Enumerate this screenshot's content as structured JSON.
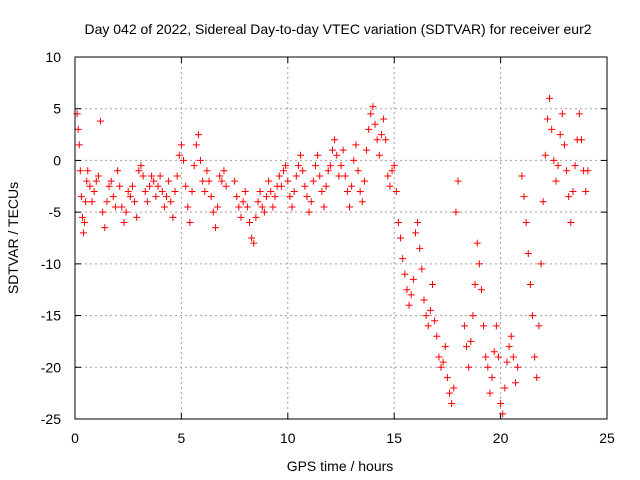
{
  "colors": {
    "series": "#ff0000",
    "grid": "#a0a0a0",
    "axis": "#000000"
  },
  "chart_data": {
    "type": "scatter",
    "marker": "plus",
    "title": "Day 042 of 2022, Sidereal Day-to-day VTEC variation (SDTVAR) for receiver eur2",
    "xlabel": "GPS time / hours",
    "ylabel": "SDTVAR / TECUs",
    "xlim": [
      0,
      25
    ],
    "ylim": [
      -25,
      10
    ],
    "xticks": [
      0,
      5,
      10,
      15,
      20,
      25
    ],
    "yticks": [
      -25,
      -20,
      -15,
      -10,
      -5,
      0,
      5,
      10
    ],
    "grid": true,
    "series": [
      {
        "name": "SDTVAR",
        "points": [
          [
            0.1,
            4.5
          ],
          [
            0.15,
            3.0
          ],
          [
            0.2,
            1.5
          ],
          [
            0.25,
            -1.0
          ],
          [
            0.3,
            -3.5
          ],
          [
            0.35,
            -5.5
          ],
          [
            0.4,
            -7.0
          ],
          [
            0.45,
            -6.0
          ],
          [
            0.5,
            -4.0
          ],
          [
            0.55,
            -2.0
          ],
          [
            0.6,
            -1.0
          ],
          [
            0.7,
            -2.5
          ],
          [
            0.8,
            -4.0
          ],
          [
            0.9,
            -3.0
          ],
          [
            1.0,
            -2.0
          ],
          [
            1.1,
            -1.5
          ],
          [
            1.2,
            3.8
          ],
          [
            1.3,
            -5.0
          ],
          [
            1.4,
            -6.5
          ],
          [
            1.5,
            -4.0
          ],
          [
            1.6,
            -2.5
          ],
          [
            1.7,
            -2.0
          ],
          [
            1.8,
            -3.5
          ],
          [
            1.9,
            -4.5
          ],
          [
            2.0,
            -1.0
          ],
          [
            2.1,
            -2.5
          ],
          [
            2.2,
            -4.5
          ],
          [
            2.3,
            -6.0
          ],
          [
            2.4,
            -5.0
          ],
          [
            2.5,
            -3.0
          ],
          [
            2.6,
            -3.5
          ],
          [
            2.7,
            -2.5
          ],
          [
            2.8,
            -4.0
          ],
          [
            2.9,
            -5.5
          ],
          [
            3.0,
            -1.0
          ],
          [
            3.1,
            -0.5
          ],
          [
            3.2,
            -1.5
          ],
          [
            3.3,
            -3.0
          ],
          [
            3.4,
            -4.0
          ],
          [
            3.5,
            -2.5
          ],
          [
            3.6,
            -1.5
          ],
          [
            3.7,
            -2.0
          ],
          [
            3.8,
            -3.5
          ],
          [
            3.9,
            -2.5
          ],
          [
            4.0,
            -1.5
          ],
          [
            4.1,
            -3.0
          ],
          [
            4.2,
            -4.5
          ],
          [
            4.3,
            -3.5
          ],
          [
            4.4,
            -2.0
          ],
          [
            4.5,
            -4.0
          ],
          [
            4.6,
            -5.5
          ],
          [
            4.7,
            -3.0
          ],
          [
            4.8,
            -1.5
          ],
          [
            4.9,
            0.5
          ],
          [
            5.0,
            1.5
          ],
          [
            5.1,
            0.0
          ],
          [
            5.2,
            -2.5
          ],
          [
            5.3,
            -4.5
          ],
          [
            5.4,
            -6.0
          ],
          [
            5.5,
            -3.0
          ],
          [
            5.6,
            -0.5
          ],
          [
            5.7,
            1.5
          ],
          [
            5.8,
            2.5
          ],
          [
            5.9,
            0.0
          ],
          [
            6.0,
            -2.0
          ],
          [
            6.1,
            -3.0
          ],
          [
            6.2,
            -1.0
          ],
          [
            6.3,
            -2.0
          ],
          [
            6.4,
            -3.5
          ],
          [
            6.5,
            -5.0
          ],
          [
            6.6,
            -6.5
          ],
          [
            6.7,
            -4.5
          ],
          [
            6.8,
            -1.5
          ],
          [
            6.9,
            -2.0
          ],
          [
            7.0,
            -1.0
          ],
          [
            7.1,
            -2.5
          ],
          [
            7.5,
            -2.0
          ],
          [
            7.6,
            -3.5
          ],
          [
            7.7,
            -4.5
          ],
          [
            7.8,
            -5.5
          ],
          [
            7.9,
            -4.0
          ],
          [
            8.0,
            -3.0
          ],
          [
            8.1,
            -4.5
          ],
          [
            8.2,
            -6.0
          ],
          [
            8.3,
            -7.5
          ],
          [
            8.4,
            -8.0
          ],
          [
            8.5,
            -5.5
          ],
          [
            8.6,
            -4.0
          ],
          [
            8.7,
            -3.0
          ],
          [
            8.8,
            -4.5
          ],
          [
            8.9,
            -5.0
          ],
          [
            9.0,
            -3.5
          ],
          [
            9.1,
            -2.0
          ],
          [
            9.2,
            -3.0
          ],
          [
            9.3,
            -4.5
          ],
          [
            9.4,
            -3.5
          ],
          [
            9.5,
            -2.5
          ],
          [
            9.6,
            -1.5
          ],
          [
            9.7,
            -2.5
          ],
          [
            9.8,
            -1.0
          ],
          [
            9.9,
            -0.5
          ],
          [
            10.0,
            -2.0
          ],
          [
            10.1,
            -3.5
          ],
          [
            10.2,
            -4.5
          ],
          [
            10.3,
            -3.0
          ],
          [
            10.4,
            -1.5
          ],
          [
            10.5,
            -0.5
          ],
          [
            10.6,
            0.5
          ],
          [
            10.7,
            -1.0
          ],
          [
            10.8,
            -2.5
          ],
          [
            10.9,
            -3.5
          ],
          [
            11.0,
            -5.0
          ],
          [
            11.1,
            -4.0
          ],
          [
            11.2,
            -2.0
          ],
          [
            11.3,
            -0.5
          ],
          [
            11.4,
            0.5
          ],
          [
            11.5,
            -1.5
          ],
          [
            11.6,
            -3.0
          ],
          [
            11.7,
            -4.5
          ],
          [
            11.8,
            -2.5
          ],
          [
            11.9,
            -1.0
          ],
          [
            12.0,
            -0.5
          ],
          [
            12.1,
            1.0
          ],
          [
            12.2,
            2.0
          ],
          [
            12.3,
            0.5
          ],
          [
            12.4,
            -1.5
          ],
          [
            12.5,
            -0.5
          ],
          [
            12.6,
            1.0
          ],
          [
            12.7,
            -1.5
          ],
          [
            12.8,
            -3.0
          ],
          [
            12.9,
            -4.5
          ],
          [
            13.0,
            -2.5
          ],
          [
            13.1,
            0.0
          ],
          [
            13.2,
            1.5
          ],
          [
            13.3,
            -1.0
          ],
          [
            13.4,
            -3.0
          ],
          [
            13.5,
            -4.0
          ],
          [
            13.6,
            -2.0
          ],
          [
            13.7,
            1.0
          ],
          [
            13.8,
            3.0
          ],
          [
            13.9,
            4.5
          ],
          [
            14.0,
            5.2
          ],
          [
            14.1,
            3.5
          ],
          [
            14.2,
            2.0
          ],
          [
            14.3,
            0.5
          ],
          [
            14.4,
            2.5
          ],
          [
            14.5,
            4.0
          ],
          [
            14.6,
            2.0
          ],
          [
            14.7,
            -1.5
          ],
          [
            14.8,
            -2.5
          ],
          [
            14.9,
            -1.0
          ],
          [
            15.0,
            -0.5
          ],
          [
            15.1,
            -3.0
          ],
          [
            15.2,
            -6.0
          ],
          [
            15.3,
            -7.5
          ],
          [
            15.4,
            -9.5
          ],
          [
            15.5,
            -11.0
          ],
          [
            15.6,
            -12.5
          ],
          [
            15.7,
            -14.0
          ],
          [
            15.8,
            -13.0
          ],
          [
            15.9,
            -11.5
          ],
          [
            16.0,
            -7.0
          ],
          [
            16.1,
            -6.0
          ],
          [
            16.2,
            -8.5
          ],
          [
            16.3,
            -10.5
          ],
          [
            16.4,
            -13.5
          ],
          [
            16.5,
            -15.0
          ],
          [
            16.6,
            -16.0
          ],
          [
            16.7,
            -14.5
          ],
          [
            16.8,
            -12.0
          ],
          [
            16.9,
            -15.5
          ],
          [
            17.0,
            -17.0
          ],
          [
            17.1,
            -19.0
          ],
          [
            17.2,
            -20.0
          ],
          [
            17.3,
            -19.5
          ],
          [
            17.4,
            -18.0
          ],
          [
            17.5,
            -21.0
          ],
          [
            17.6,
            -22.5
          ],
          [
            17.7,
            -23.5
          ],
          [
            17.8,
            -22.0
          ],
          [
            17.9,
            -5.0
          ],
          [
            18.0,
            -2.0
          ],
          [
            18.3,
            -16.0
          ],
          [
            18.4,
            -18.0
          ],
          [
            18.5,
            -20.0
          ],
          [
            18.6,
            -17.5
          ],
          [
            18.7,
            -15.0
          ],
          [
            18.8,
            -12.0
          ],
          [
            18.9,
            -8.0
          ],
          [
            19.0,
            -10.0
          ],
          [
            19.1,
            -12.5
          ],
          [
            19.2,
            -16.0
          ],
          [
            19.3,
            -19.0
          ],
          [
            19.4,
            -20.0
          ],
          [
            19.5,
            -22.5
          ],
          [
            19.6,
            -21.0
          ],
          [
            19.7,
            -18.5
          ],
          [
            19.8,
            -16.0
          ],
          [
            19.9,
            -19.0
          ],
          [
            20.0,
            -23.5
          ],
          [
            20.1,
            -24.5
          ],
          [
            20.2,
            -22.0
          ],
          [
            20.3,
            -19.5
          ],
          [
            20.4,
            -18.0
          ],
          [
            20.5,
            -17.0
          ],
          [
            20.6,
            -19.0
          ],
          [
            20.7,
            -21.5
          ],
          [
            20.8,
            -20.0
          ],
          [
            21.0,
            -1.5
          ],
          [
            21.1,
            -3.5
          ],
          [
            21.2,
            -6.0
          ],
          [
            21.3,
            -9.0
          ],
          [
            21.4,
            -12.0
          ],
          [
            21.5,
            -15.0
          ],
          [
            21.6,
            -19.0
          ],
          [
            21.7,
            -21.0
          ],
          [
            21.8,
            -16.0
          ],
          [
            21.9,
            -10.0
          ],
          [
            22.0,
            -4.0
          ],
          [
            22.1,
            0.5
          ],
          [
            22.2,
            4.0
          ],
          [
            22.3,
            6.0
          ],
          [
            22.4,
            3.0
          ],
          [
            22.5,
            0.0
          ],
          [
            22.6,
            -2.0
          ],
          [
            22.7,
            -0.5
          ],
          [
            22.8,
            2.5
          ],
          [
            22.9,
            4.5
          ],
          [
            23.0,
            1.5
          ],
          [
            23.1,
            -1.0
          ],
          [
            23.2,
            -3.5
          ],
          [
            23.3,
            -6.0
          ],
          [
            23.4,
            -3.0
          ],
          [
            23.5,
            -0.5
          ],
          [
            23.6,
            2.0
          ],
          [
            23.7,
            4.5
          ],
          [
            23.8,
            2.0
          ],
          [
            23.9,
            -1.0
          ],
          [
            24.0,
            -3.0
          ],
          [
            24.1,
            -1.0
          ]
        ]
      }
    ]
  }
}
